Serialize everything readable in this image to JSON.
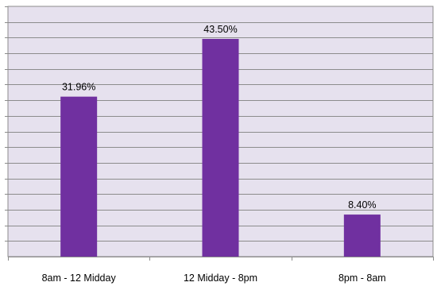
{
  "chart_data": {
    "type": "bar",
    "categories": [
      "8am - 12 Midday",
      "12 Midday - 8pm",
      "8pm - 8am"
    ],
    "values": [
      31.96,
      43.5,
      8.4
    ],
    "data_labels": [
      "31.96%",
      "43.50%",
      "8.40%"
    ],
    "title": "",
    "xlabel": "",
    "ylabel": "",
    "ylim": [
      0,
      50
    ],
    "y_gridline_step": 3.125,
    "grid": true,
    "legend": "none",
    "y_tick_labels_shown": false,
    "colors": {
      "plot_background": "#e6e1ee",
      "bar": "#7030a0",
      "gridline": "#8c8c8c",
      "axis": "#8c8c8c"
    }
  }
}
